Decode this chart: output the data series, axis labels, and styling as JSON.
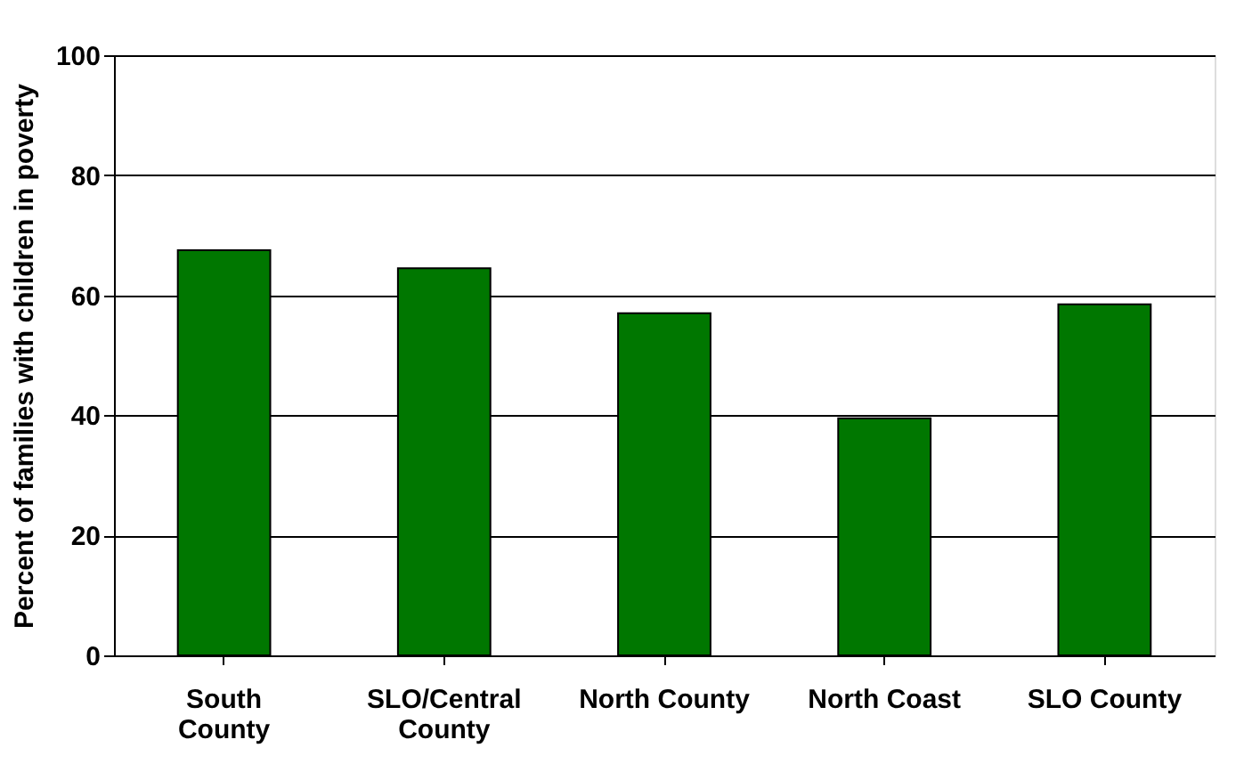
{
  "chart_data": {
    "type": "bar",
    "ylabel": "Percent of families with children in poverty",
    "categories": [
      "South\nCounty",
      "SLO/Central\nCounty",
      "North County",
      "North Coast",
      "SLO County"
    ],
    "values": [
      67.5,
      64.5,
      57,
      39.5,
      58.5
    ],
    "color": "#007700",
    "ylim": [
      0,
      100
    ],
    "yticks": [
      0,
      20,
      40,
      60,
      80,
      100
    ],
    "grid": "y"
  }
}
